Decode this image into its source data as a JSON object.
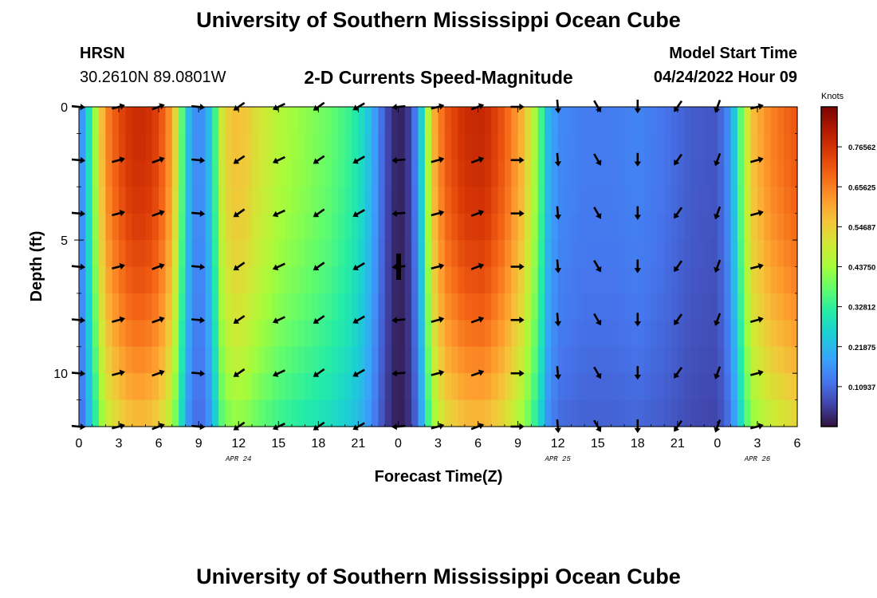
{
  "header": {
    "title": "University of Southern Mississippi Ocean Cube",
    "station": "HRSN",
    "coordinates": "30.2610N  89.0801W",
    "subtitle": "2-D Currents Speed-Magnitude",
    "model_start_label": "Model Start Time",
    "model_start_value": "04/24/2022 Hour 09",
    "footer_title": "University of Southern Mississippi Ocean Cube"
  },
  "chart_data": {
    "type": "heatmap",
    "title": "2-D Currents Speed-Magnitude",
    "xlabel": "Forecast Time(Z)",
    "ylabel": "Depth (ft)",
    "x_range_hours": [
      0,
      54
    ],
    "y_range_ft": [
      0,
      12
    ],
    "x_ticks": [
      {
        "hour": 0,
        "label": "0"
      },
      {
        "hour": 3,
        "label": "3"
      },
      {
        "hour": 6,
        "label": "6"
      },
      {
        "hour": 9,
        "label": "9"
      },
      {
        "hour": 12,
        "label": "12"
      },
      {
        "hour": 15,
        "label": "15"
      },
      {
        "hour": 18,
        "label": "18"
      },
      {
        "hour": 21,
        "label": "21"
      },
      {
        "hour": 24,
        "label": "0"
      },
      {
        "hour": 27,
        "label": "3"
      },
      {
        "hour": 30,
        "label": "6"
      },
      {
        "hour": 33,
        "label": "9"
      },
      {
        "hour": 36,
        "label": "12"
      },
      {
        "hour": 39,
        "label": "15"
      },
      {
        "hour": 42,
        "label": "18"
      },
      {
        "hour": 45,
        "label": "21"
      },
      {
        "hour": 48,
        "label": "0"
      },
      {
        "hour": 51,
        "label": "3"
      },
      {
        "hour": 54,
        "label": "6"
      }
    ],
    "date_labels": [
      {
        "hour": 12,
        "label": "APR 24"
      },
      {
        "hour": 36,
        "label": "APR 25"
      },
      {
        "hour": 51,
        "label": "APR 26"
      }
    ],
    "y_ticks": [
      {
        "depth": 0,
        "label": "0"
      },
      {
        "depth": 5,
        "label": "5"
      },
      {
        "depth": 10,
        "label": "10"
      }
    ],
    "colorbar": {
      "label": "Knots",
      "min": 0,
      "max": 0.875,
      "ticks": [
        "0.76562",
        "0.65625",
        "0.54687",
        "0.43750",
        "0.32812",
        "0.21875",
        "0.10937"
      ],
      "tick_values": [
        0.76562,
        0.65625,
        0.54687,
        0.4375,
        0.32812,
        0.21875,
        0.10937
      ]
    },
    "speed_profile_knots": [
      {
        "hour": 0.0,
        "speed": 0.12
      },
      {
        "hour": 0.5,
        "speed": 0.22
      },
      {
        "hour": 1.0,
        "speed": 0.35
      },
      {
        "hour": 1.5,
        "speed": 0.5
      },
      {
        "hour": 2.0,
        "speed": 0.63
      },
      {
        "hour": 3.0,
        "speed": 0.71
      },
      {
        "hour": 4.0,
        "speed": 0.76
      },
      {
        "hour": 5.0,
        "speed": 0.76
      },
      {
        "hour": 6.0,
        "speed": 0.72
      },
      {
        "hour": 7.0,
        "speed": 0.6
      },
      {
        "hour": 7.6,
        "speed": 0.42
      },
      {
        "hour": 8.0,
        "speed": 0.26
      },
      {
        "hour": 8.5,
        "speed": 0.17
      },
      {
        "hour": 9.0,
        "speed": 0.14
      },
      {
        "hour": 9.6,
        "speed": 0.18
      },
      {
        "hour": 10.2,
        "speed": 0.32
      },
      {
        "hour": 10.8,
        "speed": 0.5
      },
      {
        "hour": 11.5,
        "speed": 0.56
      },
      {
        "hour": 12.5,
        "speed": 0.55
      },
      {
        "hour": 13.5,
        "speed": 0.5
      },
      {
        "hour": 15.0,
        "speed": 0.45
      },
      {
        "hour": 17.0,
        "speed": 0.41
      },
      {
        "hour": 19.0,
        "speed": 0.37
      },
      {
        "hour": 20.5,
        "speed": 0.32
      },
      {
        "hour": 21.5,
        "speed": 0.26
      },
      {
        "hour": 22.3,
        "speed": 0.17
      },
      {
        "hour": 23.0,
        "speed": 0.08
      },
      {
        "hour": 23.6,
        "speed": 0.03
      },
      {
        "hour": 24.2,
        "speed": 0.02
      },
      {
        "hour": 24.8,
        "speed": 0.05
      },
      {
        "hour": 25.5,
        "speed": 0.16
      },
      {
        "hour": 26.0,
        "speed": 0.35
      },
      {
        "hour": 26.5,
        "speed": 0.55
      },
      {
        "hour": 27.5,
        "speed": 0.69
      },
      {
        "hour": 29.0,
        "speed": 0.76
      },
      {
        "hour": 30.5,
        "speed": 0.77
      },
      {
        "hour": 32.0,
        "speed": 0.69
      },
      {
        "hour": 33.5,
        "speed": 0.56
      },
      {
        "hour": 34.5,
        "speed": 0.4
      },
      {
        "hour": 35.2,
        "speed": 0.22
      },
      {
        "hour": 36.0,
        "speed": 0.15
      },
      {
        "hour": 38.0,
        "speed": 0.13
      },
      {
        "hour": 40.0,
        "speed": 0.13
      },
      {
        "hour": 42.0,
        "speed": 0.14
      },
      {
        "hour": 44.0,
        "speed": 0.12
      },
      {
        "hour": 46.0,
        "speed": 0.09
      },
      {
        "hour": 48.0,
        "speed": 0.08
      },
      {
        "hour": 49.0,
        "speed": 0.17
      },
      {
        "hour": 49.8,
        "speed": 0.38
      },
      {
        "hour": 50.5,
        "speed": 0.55
      },
      {
        "hour": 52.0,
        "speed": 0.64
      },
      {
        "hour": 54.0,
        "speed": 0.7
      }
    ],
    "vector_depths_ft": [
      0,
      2,
      4,
      6,
      8,
      10,
      12
    ],
    "vector_directions_deg": [
      {
        "hour": 0,
        "dir": 95
      },
      {
        "hour": 3,
        "dir": 75
      },
      {
        "hour": 6,
        "dir": 70
      },
      {
        "hour": 9,
        "dir": 95
      },
      {
        "hour": 12,
        "dir": 235
      },
      {
        "hour": 15,
        "dir": 245
      },
      {
        "hour": 18,
        "dir": 235
      },
      {
        "hour": 21,
        "dir": 240
      },
      {
        "hour": 24,
        "dir": 265
      },
      {
        "hour": 27,
        "dir": 75
      },
      {
        "hour": 30,
        "dir": 70
      },
      {
        "hour": 33,
        "dir": 90
      },
      {
        "hour": 36,
        "dir": 175
      },
      {
        "hour": 39,
        "dir": 150
      },
      {
        "hour": 42,
        "dir": 180
      },
      {
        "hour": 45,
        "dir": 215
      },
      {
        "hour": 48,
        "dir": 200
      },
      {
        "hour": 51,
        "dir": 75
      }
    ]
  }
}
